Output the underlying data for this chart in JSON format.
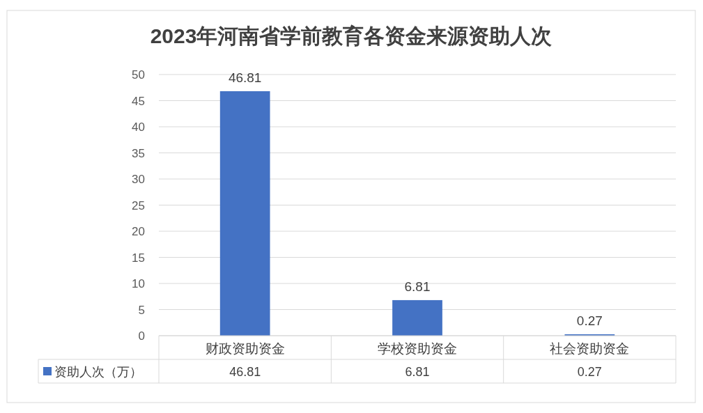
{
  "chart_data": {
    "type": "bar",
    "title": "2023年河南省学前教育各资金来源资助人次",
    "categories": [
      "财政资助资金",
      "学校资助资金",
      "社会资助资金"
    ],
    "series": [
      {
        "name": "资助人次（万）",
        "color": "#4472c4",
        "values": [
          46.81,
          6.81,
          0.27
        ]
      }
    ],
    "ylim": [
      0,
      50
    ],
    "yticks": [
      0,
      5,
      10,
      15,
      20,
      25,
      30,
      35,
      40,
      45,
      50
    ],
    "annotations": [
      "46.81",
      "6.81",
      "0.27"
    ],
    "grid": "y",
    "data_labels": true,
    "legend": "bottom"
  }
}
